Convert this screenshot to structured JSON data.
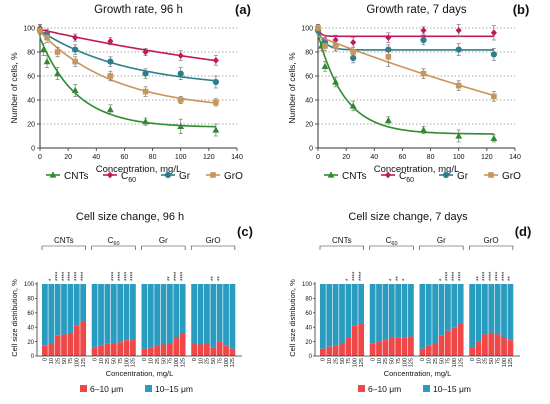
{
  "colors": {
    "CNTs": "#2e8b2e",
    "C60": "#c2185b",
    "Gr": "#2a7f8f",
    "GrO": "#c8955a",
    "small": "#f04848",
    "large": "#2a9cc0",
    "axis": "#333333",
    "grid": "#555555"
  },
  "legend_top": {
    "CNTs": "CNTs",
    "C60": "C",
    "C60_sub": "60",
    "Gr": "Gr",
    "GrO": "GrO"
  },
  "legend_bottom": {
    "small": "6–10 μm",
    "large": "10–15 μm"
  },
  "chart_data": [
    {
      "type": "scatter",
      "panel": "(a)",
      "title": "Growth rate, 96 h",
      "xlabel": "Concentration, mg/L",
      "ylabel": "Number of cells, %",
      "xlim": [
        0,
        140
      ],
      "ylim": [
        0,
        100
      ],
      "xticks": [
        "0",
        "20",
        "40",
        "60",
        "80",
        "100",
        "120",
        "140"
      ],
      "yticks": [
        "0",
        "20",
        "40",
        "60",
        "80",
        "100"
      ],
      "grid": "dashed horizontal",
      "legend": "bottom",
      "series": [
        {
          "name": "CNTs",
          "x": [
            0,
            2.5,
            5,
            12.5,
            25,
            50,
            75,
            100,
            125
          ],
          "y": [
            100,
            82,
            72,
            62,
            48,
            32,
            22,
            18,
            15
          ],
          "err": [
            3,
            5,
            5,
            5,
            5,
            4,
            3,
            6,
            5
          ]
        },
        {
          "name": "C60",
          "x": [
            0,
            5,
            25,
            50,
            75,
            100,
            125
          ],
          "y": [
            100,
            96,
            92,
            89,
            80,
            77,
            73
          ],
          "err": [
            3,
            3,
            3,
            3,
            3,
            4,
            4
          ]
        },
        {
          "name": "Gr",
          "x": [
            0,
            5,
            25,
            50,
            75,
            100,
            125
          ],
          "y": [
            98,
            94,
            82,
            72,
            62,
            62,
            55
          ],
          "err": [
            3,
            3,
            4,
            4,
            4,
            5,
            5
          ]
        },
        {
          "name": "GrO",
          "x": [
            0,
            5,
            12.5,
            25,
            50,
            75,
            100,
            125
          ],
          "y": [
            98,
            92,
            80,
            72,
            60,
            47,
            40,
            38
          ],
          "err": [
            3,
            4,
            4,
            4,
            4,
            4,
            3,
            3
          ]
        }
      ]
    },
    {
      "type": "scatter",
      "panel": "(b)",
      "title": "Growth rate, 7 days",
      "xlabel": "Concentration, mg/L",
      "ylabel": "Number of cells, %",
      "xlim": [
        0,
        140
      ],
      "ylim": [
        0,
        100
      ],
      "xticks": [
        "0",
        "20",
        "40",
        "60",
        "80",
        "100",
        "120",
        "140"
      ],
      "yticks": [
        "0",
        "20",
        "40",
        "60",
        "80",
        "100"
      ],
      "grid": "dashed horizontal",
      "legend": "bottom",
      "series": [
        {
          "name": "CNTs",
          "x": [
            0,
            2.5,
            5,
            12.5,
            25,
            50,
            75,
            100,
            125
          ],
          "y": [
            100,
            85,
            68,
            55,
            35,
            23,
            15,
            10,
            8
          ],
          "err": [
            3,
            4,
            4,
            4,
            4,
            3,
            3,
            5,
            3
          ]
        },
        {
          "name": "C60",
          "x": [
            0,
            5,
            12.5,
            25,
            50,
            75,
            100,
            125
          ],
          "y": [
            100,
            90,
            90,
            88,
            92,
            98,
            98,
            96
          ],
          "err": [
            3,
            4,
            4,
            4,
            4,
            3,
            5,
            6
          ]
        },
        {
          "name": "Gr",
          "x": [
            0,
            5,
            12.5,
            25,
            50,
            75,
            100,
            125
          ],
          "y": [
            98,
            88,
            85,
            75,
            82,
            90,
            82,
            78
          ],
          "err": [
            3,
            4,
            4,
            4,
            4,
            4,
            5,
            5
          ]
        },
        {
          "name": "GrO",
          "x": [
            0,
            5,
            12.5,
            25,
            50,
            75,
            100,
            125
          ],
          "y": [
            100,
            85,
            85,
            80,
            76,
            62,
            52,
            43
          ],
          "err": [
            3,
            4,
            4,
            4,
            8,
            4,
            4,
            4
          ]
        }
      ]
    },
    {
      "type": "bar",
      "stacked": true,
      "panel": "(c)",
      "title": "Cell size change, 96 h",
      "xlabel": "Concentration, mg/L",
      "ylabel": "Cell size distribution, %",
      "ylim": [
        0,
        100
      ],
      "yticks": [
        "0",
        "20",
        "40",
        "60",
        "80",
        "100"
      ],
      "categories": [
        "0",
        "10",
        "25",
        "50",
        "75",
        "100",
        "125"
      ],
      "groups": [
        {
          "name": "CNTs",
          "small": [
            15,
            18,
            28,
            30,
            32,
            42,
            48
          ],
          "stars": [
            "",
            "*",
            "****",
            "****",
            "****",
            "****",
            "****"
          ]
        },
        {
          "name": "C60",
          "small": [
            12,
            15,
            17,
            18,
            19,
            22,
            23
          ],
          "stars": [
            "",
            "",
            "",
            "****",
            "****",
            "****",
            "****"
          ]
        },
        {
          "name": "Gr",
          "small": [
            10,
            12,
            14,
            16,
            18,
            25,
            32
          ],
          "stars": [
            "",
            "",
            "",
            "",
            "**",
            "****",
            "****"
          ]
        },
        {
          "name": "GrO",
          "small": [
            18,
            16,
            18,
            12,
            20,
            15,
            10
          ],
          "stars": [
            "",
            "",
            "",
            "**",
            "**",
            "",
            ""
          ]
        }
      ]
    },
    {
      "type": "bar",
      "stacked": true,
      "panel": "(d)",
      "title": "Cell size change, 7 days",
      "xlabel": "Concentration, mg/L",
      "ylabel": "Cell size distribution, %",
      "ylim": [
        0,
        100
      ],
      "yticks": [
        "0",
        "20",
        "40",
        "60",
        "80",
        "100"
      ],
      "categories": [
        "0",
        "10",
        "25",
        "50",
        "75",
        "100",
        "125"
      ],
      "groups": [
        {
          "name": "CNTs",
          "small": [
            10,
            13,
            15,
            18,
            25,
            42,
            45
          ],
          "stars": [
            "",
            "",
            "",
            "",
            "*",
            "****",
            "****"
          ]
        },
        {
          "name": "C60",
          "small": [
            17,
            20,
            22,
            25,
            26,
            26,
            27
          ],
          "stars": [
            "",
            "",
            "",
            "*",
            "**",
            "*",
            ""
          ]
        },
        {
          "name": "Gr",
          "small": [
            10,
            15,
            18,
            28,
            35,
            40,
            45
          ],
          "stars": [
            "",
            "",
            "",
            "*",
            "****",
            "****",
            "****"
          ]
        },
        {
          "name": "GrO",
          "small": [
            12,
            20,
            30,
            32,
            30,
            25,
            22
          ],
          "stars": [
            "",
            "**",
            "****",
            "****",
            "****",
            "****",
            "**"
          ]
        }
      ]
    }
  ]
}
